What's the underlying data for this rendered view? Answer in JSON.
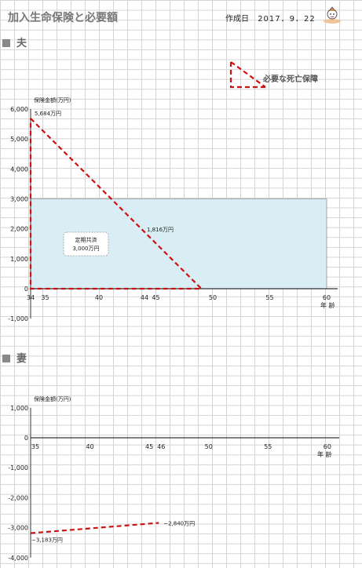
{
  "header": {
    "title": "加入生命保険と必要額",
    "created_label": "作成日",
    "created_date": "2017．9．22"
  },
  "icons": {
    "mascot": "mascot-illustration"
  },
  "colors": {
    "need_line": "#cc1111",
    "coverage_fill": "#d9edf4",
    "coverage_stroke": "#9aa9ad",
    "axis": "#333333"
  },
  "legend": {
    "label": "必要な死亡保障"
  },
  "sections": {
    "husband": "夫",
    "wife": "妻"
  },
  "chart_data": [
    {
      "type": "area",
      "ylabel": "保険金額(万円)",
      "xlabel": "年 齢",
      "ylim": [
        -1000,
        6000
      ],
      "yticks": [
        -1000,
        0,
        1000,
        2000,
        3000,
        4000,
        5000,
        6000
      ],
      "ytick_labels": [
        "-1,000",
        "0",
        "1,000",
        "2,000",
        "3,000",
        "4,000",
        "5,000",
        "6,000"
      ],
      "xlim": [
        34,
        60
      ],
      "xticks": [
        34,
        35,
        40,
        44,
        45,
        50,
        55,
        60
      ],
      "necessary_death_benefit": {
        "x": [
          34,
          49
        ],
        "y": [
          5684,
          0
        ],
        "start_label": "5,684万円",
        "mid_label": "1,816万円"
      },
      "coverage": {
        "name": "定期共済",
        "label": "3,000万円",
        "x": [
          34,
          60
        ],
        "y": 3000
      }
    },
    {
      "type": "line",
      "ylabel": "保険金額(万円)",
      "xlabel": "年 齢",
      "ylim": [
        -4000,
        1000
      ],
      "yticks": [
        -4000,
        -3000,
        -2000,
        -1000,
        0,
        1000
      ],
      "ytick_labels": [
        "-4,000",
        "-3,000",
        "-2,000",
        "-1,000",
        "0",
        "1,000"
      ],
      "xlim": [
        35,
        61
      ],
      "xticks": [
        35,
        40,
        45,
        46,
        50,
        55,
        60
      ],
      "necessary_death_benefit": {
        "x": [
          35,
          45.8
        ],
        "y": [
          -3183,
          -2840
        ],
        "start_label": "−3,183万円",
        "end_label": "−2,840万円"
      }
    }
  ]
}
